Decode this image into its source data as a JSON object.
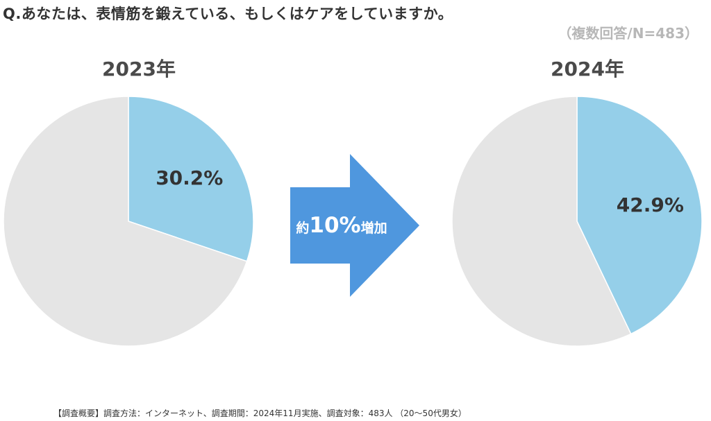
{
  "question": "Q.あなたは、表情筋を鍛えている、もしくはケアをしていますか。",
  "sample_note": "（複数回答/N=483）",
  "arrow": {
    "prefix": "約",
    "value": "10%",
    "suffix": "増加"
  },
  "footnote": "【調査概要】調査方法：インターネット、調査期間：2024年11月実施、調査対象：483人 （20～50代男女）",
  "colors": {
    "highlight": "#95cfe9",
    "rest": "#e5e5e5",
    "arrow": "#4f97de"
  },
  "chart_data": [
    {
      "type": "pie",
      "title": "2023年",
      "slices": [
        {
          "value": 30.2,
          "label": "30.2%",
          "color": "#95cfe9"
        },
        {
          "value": 69.8,
          "label": "",
          "color": "#e5e5e5"
        }
      ]
    },
    {
      "type": "pie",
      "title": "2024年",
      "slices": [
        {
          "value": 42.9,
          "label": "42.9%",
          "color": "#95cfe9"
        },
        {
          "value": 57.1,
          "label": "",
          "color": "#e5e5e5"
        }
      ]
    }
  ]
}
